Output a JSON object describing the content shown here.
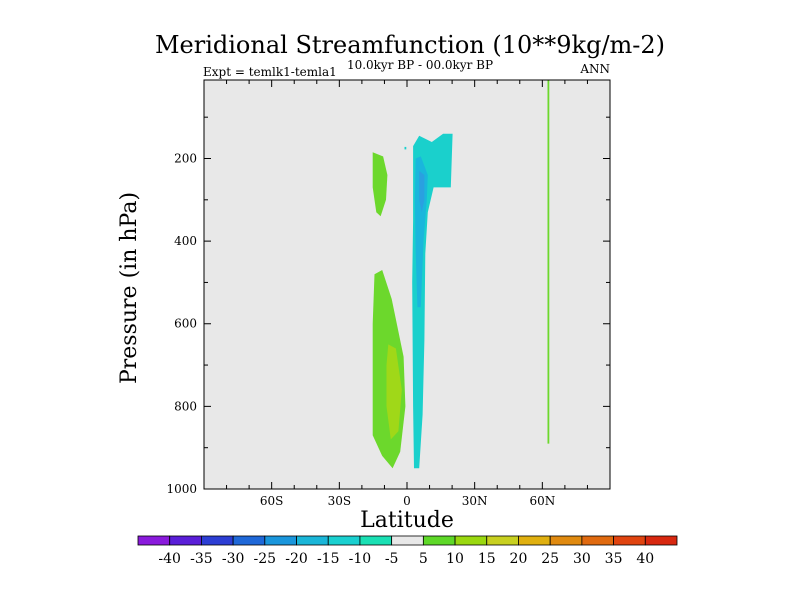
{
  "chart_data": {
    "type": "contour",
    "title": "Meridional Streamfunction (10**9kg/m-2)",
    "left_subtitle": "Expt = temlk1-temla1",
    "center_subtitle": "10.0kyr BP - 00.0kyr BP",
    "right_subtitle": "ANN",
    "xlabel": "Latitude",
    "ylabel": "Pressure (in hPa)",
    "xlim": [
      -90,
      90
    ],
    "ylim": [
      1000,
      10
    ],
    "x_ticks": [
      {
        "value": -60,
        "label": "60S"
      },
      {
        "value": -30,
        "label": "30S"
      },
      {
        "value": 0,
        "label": "0"
      },
      {
        "value": 30,
        "label": "30N"
      },
      {
        "value": 60,
        "label": "60N"
      }
    ],
    "y_ticks": [
      {
        "value": 200,
        "label": "200"
      },
      {
        "value": 400,
        "label": "400"
      },
      {
        "value": 600,
        "label": "600"
      },
      {
        "value": 800,
        "label": "800"
      },
      {
        "value": 1000,
        "label": "1000"
      }
    ],
    "background_color": "#e8e8e8",
    "colorbar": {
      "labels": [
        "-40",
        "-35",
        "-30",
        "-25",
        "-20",
        "-15",
        "-10",
        "-5",
        "5",
        "10",
        "15",
        "20",
        "25",
        "30",
        "35",
        "40"
      ],
      "colors": [
        "#8a1adc",
        "#5a1ed8",
        "#2c3ed4",
        "#1f68d8",
        "#1a96dc",
        "#1ab6d8",
        "#1ad0d0",
        "#1ae0b4",
        "#e8e8e8",
        "#5ed828",
        "#9ad810",
        "#c8d020",
        "#e0b010",
        "#e08a10",
        "#e06a10",
        "#e04410",
        "#d82810"
      ]
    },
    "regions": [
      {
        "name": "southern-upper-positive-lobe",
        "level": "5",
        "color": "#6cd82c",
        "points": [
          [
            -15.2,
            185
          ],
          [
            -10.6,
            195
          ],
          [
            -8.7,
            240
          ],
          [
            -9.3,
            300
          ],
          [
            -11.7,
            340
          ],
          [
            -13.6,
            330
          ],
          [
            -15.2,
            270
          ]
        ]
      },
      {
        "name": "southern-lower-positive-lobe",
        "level": "5",
        "color": "#6cd82c",
        "points": [
          [
            -14.4,
            480
          ],
          [
            -11.0,
            470
          ],
          [
            -6.8,
            540
          ],
          [
            -1.5,
            680
          ],
          [
            -0.7,
            800
          ],
          [
            -3.0,
            910
          ],
          [
            -6.4,
            950
          ],
          [
            -11.0,
            920
          ],
          [
            -15.2,
            870
          ],
          [
            -15.2,
            600
          ]
        ]
      },
      {
        "name": "southern-lower-10-core",
        "level": "10",
        "color": "#a0d818",
        "points": [
          [
            -8.3,
            650
          ],
          [
            -4.9,
            660
          ],
          [
            -2.3,
            760
          ],
          [
            -3.8,
            860
          ],
          [
            -7.2,
            880
          ],
          [
            -9.1,
            800
          ],
          [
            -9.1,
            700
          ]
        ]
      },
      {
        "name": "equatorial-negative-lobe",
        "level": "-5",
        "color": "#1ad0cc",
        "points": [
          [
            2.7,
            170
          ],
          [
            5.4,
            145
          ],
          [
            11.0,
            160
          ],
          [
            16.0,
            140
          ],
          [
            20.2,
            140
          ],
          [
            19.4,
            270
          ],
          [
            11.8,
            270
          ],
          [
            9.2,
            330
          ],
          [
            8.1,
            430
          ],
          [
            7.7,
            640
          ],
          [
            6.9,
            820
          ],
          [
            5.4,
            950
          ],
          [
            3.1,
            950
          ],
          [
            2.7,
            800
          ],
          [
            2.3,
            500
          ],
          [
            2.7,
            350
          ]
        ]
      },
      {
        "name": "equatorial-negative-10-core",
        "level": "-10",
        "color": "#1ab6dc",
        "points": [
          [
            3.8,
            200
          ],
          [
            6.1,
            195
          ],
          [
            9.2,
            240
          ],
          [
            8.8,
            300
          ],
          [
            7.3,
            400
          ],
          [
            6.1,
            560
          ],
          [
            4.6,
            560
          ],
          [
            3.8,
            420
          ],
          [
            3.5,
            300
          ]
        ]
      },
      {
        "name": "equatorial-negative-15-core",
        "level": "-15",
        "color": "#2aa0e0",
        "points": [
          [
            5.4,
            230
          ],
          [
            7.7,
            240
          ],
          [
            7.7,
            300
          ],
          [
            6.5,
            330
          ],
          [
            5.4,
            300
          ]
        ]
      },
      {
        "name": "small-negative-dot",
        "level": "-5",
        "color": "#1ad0cc",
        "points": [
          [
            -1.1,
            172
          ],
          [
            -0.3,
            172
          ],
          [
            -0.3,
            178
          ],
          [
            -1.1,
            178
          ]
        ]
      },
      {
        "name": "northern-thin-positive-strip",
        "level": "5",
        "color": "#6cd82c",
        "points": [
          [
            62.3,
            10
          ],
          [
            63.1,
            10
          ],
          [
            63.1,
            890
          ],
          [
            62.3,
            890
          ]
        ]
      }
    ]
  }
}
